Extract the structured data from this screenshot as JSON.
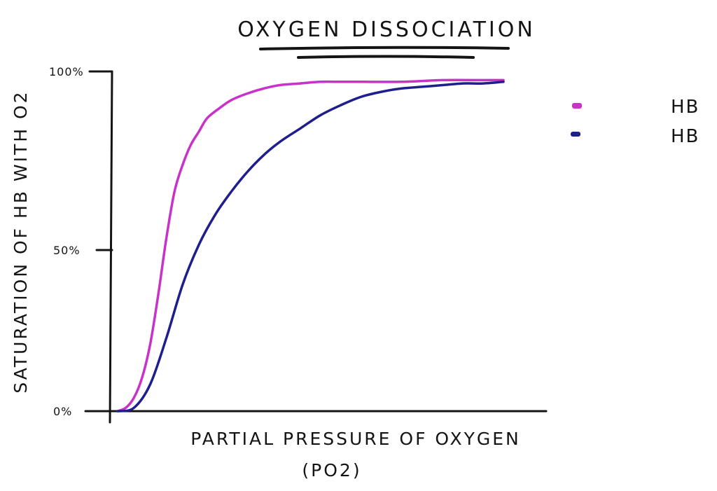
{
  "chart_data": {
    "type": "line",
    "title": "OXYGEN DISSOCIATION",
    "xlabel": "PARTIAL PRESSURE OF OXYGEN",
    "xlabel_sub": "(PO2)",
    "ylabel": "SATURATION OF HB WITH O2",
    "yticks": [
      "0%",
      "50%",
      "100%"
    ],
    "ylim": [
      0,
      100
    ],
    "xlim": [
      0,
      100
    ],
    "grid": false,
    "legend_position": "right",
    "series": [
      {
        "name": "HB",
        "color": "#c832c8",
        "x": [
          0,
          2,
          4,
          6,
          8,
          10,
          12,
          14,
          16,
          18,
          20,
          22,
          25,
          28,
          32,
          36,
          40,
          45,
          50,
          55,
          60,
          70,
          80,
          90,
          95
        ],
        "y": [
          0,
          1,
          4,
          10,
          20,
          35,
          52,
          66,
          74,
          80,
          84,
          88,
          91,
          93.5,
          95.5,
          97,
          98,
          98.5,
          99,
          99,
          99,
          99,
          99.5,
          99.5,
          99.5
        ]
      },
      {
        "name": "HB",
        "color": "#1e1e8c",
        "x": [
          0,
          4,
          8,
          12,
          16,
          20,
          24,
          28,
          32,
          36,
          40,
          45,
          50,
          55,
          60,
          65,
          70,
          75,
          80,
          85,
          90,
          95
        ],
        "y": [
          0,
          1,
          8,
          22,
          38,
          50,
          59,
          66,
          72,
          77,
          81,
          85,
          89,
          92,
          94.5,
          96,
          97,
          97.5,
          98,
          98.5,
          98.5,
          99
        ]
      }
    ]
  }
}
